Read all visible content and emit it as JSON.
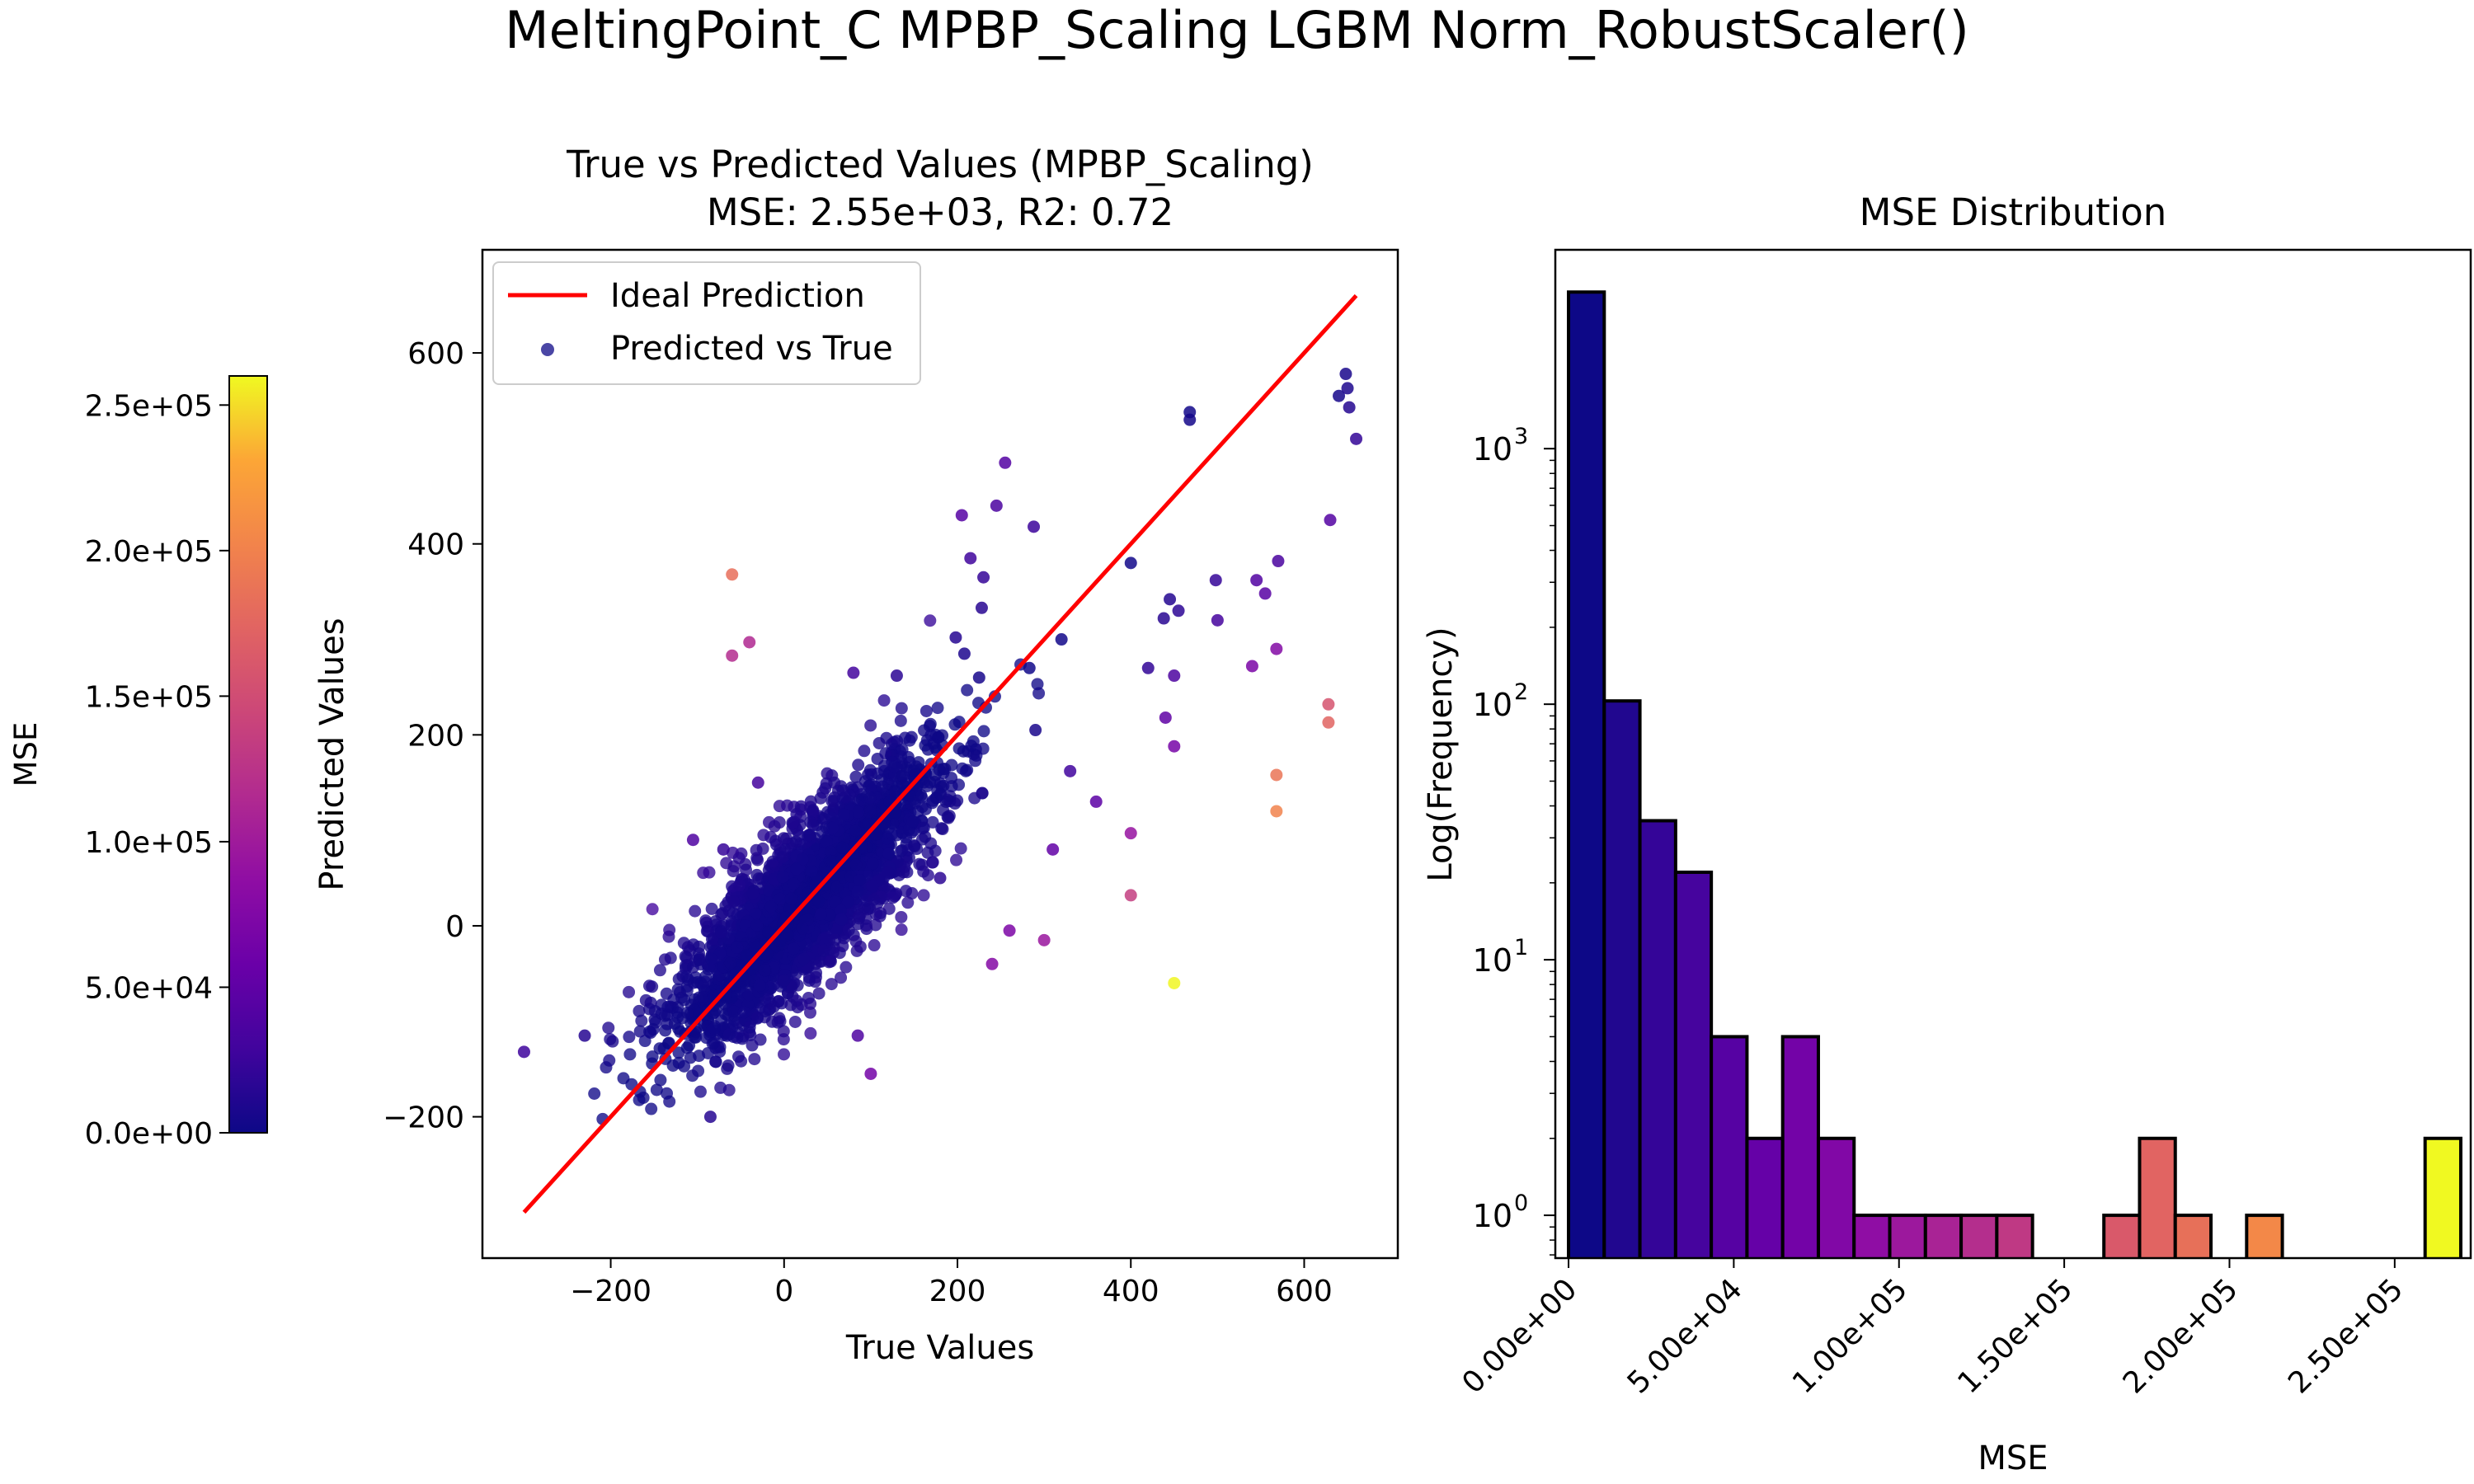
{
  "suptitle": "MeltingPoint_C MPBP_Scaling LGBM Norm_RobustScaler()",
  "chart_data": [
    {
      "type": "colorbar",
      "label": "MSE",
      "colormap": "plasma",
      "range": [
        0,
        260000
      ],
      "ticks": [
        0,
        50000,
        100000,
        150000,
        200000,
        250000
      ],
      "tick_labels": [
        "0.0e+00",
        "5.0e+04",
        "1.0e+05",
        "1.5e+05",
        "2.0e+05",
        "2.5e+05"
      ]
    },
    {
      "type": "scatter",
      "title_line1": "True vs Predicted Values (MPBP_Scaling)",
      "title_line2": "MSE: 2.55e+03, R2: 0.72",
      "xlabel": "True Values",
      "ylabel": "Predicted Values",
      "xlim": [
        -348,
        708
      ],
      "ylim": [
        -348,
        708
      ],
      "xticks": [
        -200,
        0,
        200,
        400,
        600
      ],
      "yticks": [
        -200,
        0,
        200,
        400,
        600
      ],
      "legend": {
        "position": "upper-left",
        "entries": [
          "Ideal Prediction",
          "Predicted vs True"
        ]
      },
      "ideal_line": {
        "from": [
          -300,
          -300
        ],
        "to": [
          660,
          660
        ],
        "color": "#ff0000"
      },
      "color_by": "MSE",
      "outliers": [
        {
          "x": -60,
          "y": 368,
          "mse": 183000
        },
        {
          "x": -60,
          "y": 283,
          "mse": 118000
        },
        {
          "x": -40,
          "y": 297,
          "mse": 114000
        },
        {
          "x": 400,
          "y": 97,
          "mse": 92000
        },
        {
          "x": 400,
          "y": 32,
          "mse": 135000
        },
        {
          "x": 450,
          "y": -60,
          "mse": 259000
        },
        {
          "x": 450,
          "y": 188,
          "mse": 68000
        },
        {
          "x": 568,
          "y": 158,
          "mse": 188000
        },
        {
          "x": 568,
          "y": 120,
          "mse": 201000
        },
        {
          "x": 568,
          "y": 290,
          "mse": 77000
        },
        {
          "x": 628,
          "y": 232,
          "mse": 157000
        },
        {
          "x": 628,
          "y": 213,
          "mse": 173000
        },
        {
          "x": 630,
          "y": 425,
          "mse": 42000
        },
        {
          "x": 660,
          "y": 510,
          "mse": 21000
        },
        {
          "x": 648,
          "y": 578,
          "mse": 7000
        },
        {
          "x": 640,
          "y": 555,
          "mse": 5000
        },
        {
          "x": 650,
          "y": 563,
          "mse": 9000
        },
        {
          "x": 652,
          "y": 543,
          "mse": 12000
        },
        {
          "x": 468,
          "y": 538,
          "mse": 3000
        },
        {
          "x": 468,
          "y": 530,
          "mse": 4000
        },
        {
          "x": 570,
          "y": 382,
          "mse": 35000
        },
        {
          "x": 555,
          "y": 348,
          "mse": 45000
        },
        {
          "x": 545,
          "y": 362,
          "mse": 40000
        },
        {
          "x": 540,
          "y": 272,
          "mse": 70000
        },
        {
          "x": 455,
          "y": 330,
          "mse": 18000
        },
        {
          "x": 445,
          "y": 342,
          "mse": 12000
        },
        {
          "x": 438,
          "y": 322,
          "mse": 15000
        },
        {
          "x": 450,
          "y": 262,
          "mse": 38000
        },
        {
          "x": 420,
          "y": 270,
          "mse": 20000
        },
        {
          "x": 400,
          "y": 380,
          "mse": 3000
        },
        {
          "x": 440,
          "y": 218,
          "mse": 50000
        },
        {
          "x": 498,
          "y": 362,
          "mse": 22000
        },
        {
          "x": 500,
          "y": 320,
          "mse": 32000
        },
        {
          "x": 320,
          "y": 300,
          "mse": 3000
        },
        {
          "x": 283,
          "y": 270,
          "mse": 2000
        },
        {
          "x": 255,
          "y": 485,
          "mse": 42000
        },
        {
          "x": 245,
          "y": 440,
          "mse": 36000
        },
        {
          "x": 205,
          "y": 430,
          "mse": 44000
        },
        {
          "x": 215,
          "y": 385,
          "mse": 28000
        },
        {
          "x": 230,
          "y": 365,
          "mse": 22000
        },
        {
          "x": 288,
          "y": 418,
          "mse": 26000
        },
        {
          "x": 228,
          "y": 333,
          "mse": 15000
        },
        {
          "x": 198,
          "y": 302,
          "mse": 14000
        },
        {
          "x": 208,
          "y": 285,
          "mse": 9000
        },
        {
          "x": 225,
          "y": 260,
          "mse": 6000
        },
        {
          "x": 290,
          "y": 205,
          "mse": 7000
        },
        {
          "x": 300,
          "y": -15,
          "mse": 95000
        },
        {
          "x": 260,
          "y": -5,
          "mse": 72000
        },
        {
          "x": 240,
          "y": -40,
          "mse": 78000
        },
        {
          "x": 100,
          "y": -155,
          "mse": 65000
        },
        {
          "x": 85,
          "y": -115,
          "mse": 39000
        },
        {
          "x": -300,
          "y": -132,
          "mse": 27000
        },
        {
          "x": -230,
          "y": -115,
          "mse": 14000
        },
        {
          "x": -85,
          "y": -200,
          "mse": 14000
        },
        {
          "x": -105,
          "y": 90,
          "mse": 39000
        },
        {
          "x": -70,
          "y": 80,
          "mse": 23000
        },
        {
          "x": -30,
          "y": 150,
          "mse": 32000
        },
        {
          "x": 80,
          "y": 265,
          "mse": 30000
        },
        {
          "x": 130,
          "y": 262,
          "mse": 17000
        },
        {
          "x": 360,
          "y": 130,
          "mse": 48000
        },
        {
          "x": 330,
          "y": 162,
          "mse": 29000
        },
        {
          "x": 310,
          "y": 80,
          "mse": 52000
        },
        {
          "x": 180,
          "y": 50,
          "mse": 17000
        },
        {
          "x": 150,
          "y": 150,
          "mse": 0
        }
      ]
    },
    {
      "type": "bar",
      "subtype": "histogram",
      "title": "MSE Distribution",
      "xlabel": "MSE",
      "ylabel": "Log(Frequency)",
      "yscale": "log",
      "ylim": [
        0.68,
        6000
      ],
      "yticks": [
        1,
        10,
        100,
        1000
      ],
      "ytick_labels": [
        "10",
        "10",
        "10",
        "10"
      ],
      "ytick_exponents": [
        "0",
        "1",
        "2",
        "3"
      ],
      "xlim": [
        -4000,
        273000
      ],
      "xticks": [
        0,
        50000,
        100000,
        150000,
        200000,
        250000
      ],
      "xtick_labels": [
        "0.00e+00",
        "5.00e+04",
        "1.00e+05",
        "1.50e+05",
        "2.00e+05",
        "2.50e+05"
      ],
      "bin_width": 10800,
      "bin_start": 0,
      "counts": [
        4100,
        103,
        35,
        22,
        5,
        2,
        5,
        2,
        1,
        1,
        1,
        1,
        1,
        0,
        0,
        1,
        2,
        1,
        0,
        1,
        0,
        0,
        0,
        0,
        2
      ]
    }
  ]
}
